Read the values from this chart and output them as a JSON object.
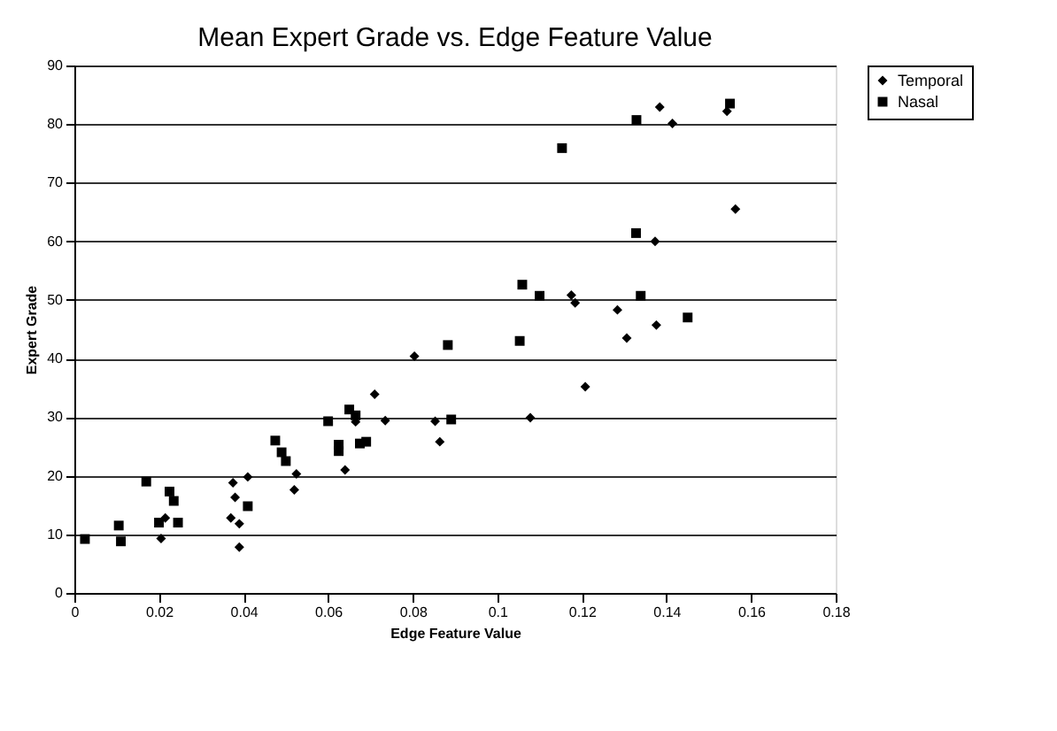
{
  "chart_data": {
    "type": "scatter",
    "title": "Mean Expert Grade vs. Edge Feature Value",
    "xlabel": "Edge Feature Value",
    "ylabel": "Expert Grade",
    "xlim": [
      0,
      0.18
    ],
    "xticks": [
      0,
      0.02,
      0.04,
      0.06,
      0.08,
      0.1,
      0.12,
      0.14,
      0.16,
      0.18
    ],
    "ylim": [
      0,
      90
    ],
    "yticks": [
      0,
      10,
      20,
      30,
      40,
      50,
      60,
      70,
      80,
      90
    ],
    "grid": "y",
    "legend": "right",
    "series": [
      {
        "name": "Temporal",
        "color": "#000000",
        "marker": "diamond",
        "x": [
          0.0205,
          0.0215,
          0.037,
          0.0375,
          0.038,
          0.039,
          0.039,
          0.041,
          0.052,
          0.0525,
          0.064,
          0.0665,
          0.071,
          0.0735,
          0.0804,
          0.0853,
          0.0864,
          0.1078,
          0.1175,
          0.1184,
          0.1208,
          0.1284,
          0.1306,
          0.1373,
          0.1376,
          0.1384,
          0.1414,
          0.1543,
          0.1563
        ],
        "values": [
          9.3,
          12.8,
          12.8,
          18.8,
          16.3,
          11.8,
          7.8,
          19.8,
          17.6,
          20.3,
          21,
          29.2,
          33.9,
          29.4,
          40.4,
          29.3,
          25.8,
          29.9,
          50.8,
          49.5,
          35.2,
          48.3,
          43.5,
          60,
          45.7,
          82.9,
          80.1,
          82.2,
          65.5
        ]
      },
      {
        "name": "Nasal",
        "color": "#000000",
        "marker": "square",
        "x": [
          0.0025,
          0.0105,
          0.011,
          0.017,
          0.02,
          0.0225,
          0.0235,
          0.0245,
          0.041,
          0.0475,
          0.049,
          0.05,
          0.06,
          0.0625,
          0.0625,
          0.065,
          0.0665,
          0.0675,
          0.069,
          0.0883,
          0.0891,
          0.1053,
          0.1059,
          0.11,
          0.1153,
          0.1329,
          0.1328,
          0.1339,
          0.145,
          0.155
        ],
        "values": [
          9.2,
          11.5,
          8.8,
          19,
          12,
          17.3,
          15.7,
          12,
          14.8,
          26,
          24,
          22.5,
          29.3,
          25.3,
          24.2,
          31.3,
          30.3,
          25.5,
          25.8,
          42.3,
          29.6,
          43,
          52.6,
          50.7,
          75.9,
          80.7,
          61.4,
          50.7,
          47,
          83.5
        ]
      }
    ]
  }
}
